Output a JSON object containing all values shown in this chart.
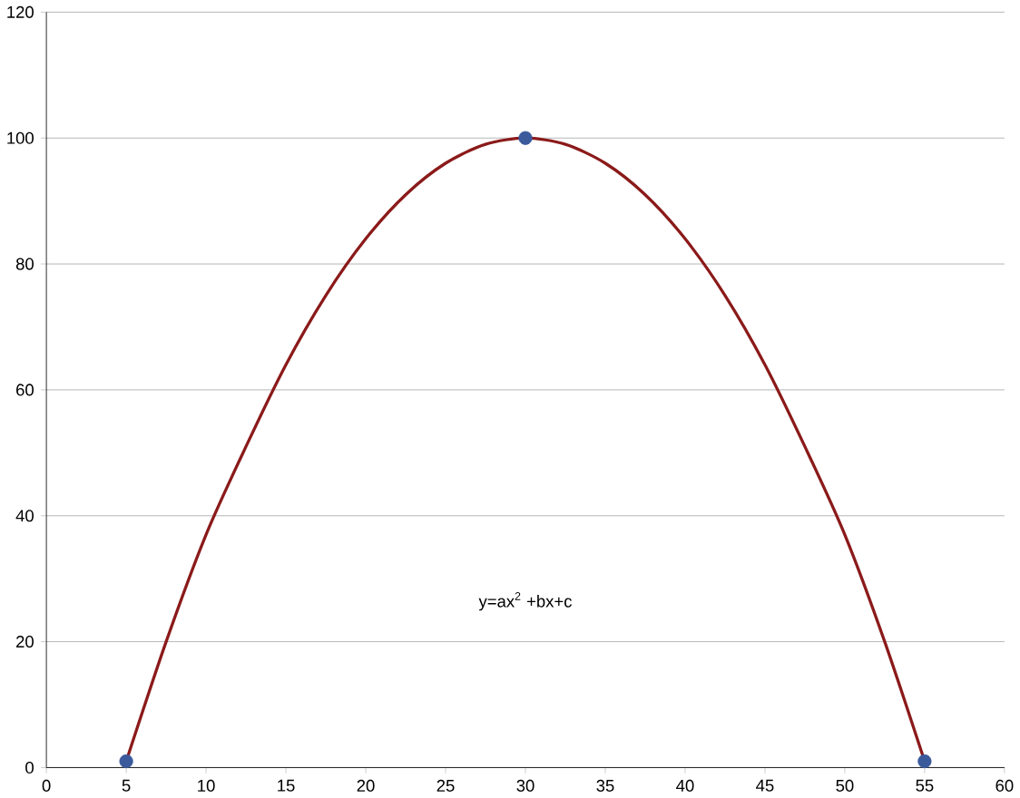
{
  "chart_data": {
    "type": "line",
    "x": [
      5,
      7.5,
      10,
      12.5,
      15,
      17.5,
      20,
      22.5,
      25,
      27.5,
      30,
      32.5,
      35,
      37.5,
      40,
      42.5,
      45,
      47.5,
      50,
      52.5,
      55
    ],
    "series": [
      {
        "color": "#8b1a1a",
        "values": [
          1,
          20,
          37,
          51,
          64,
          75,
          84,
          91,
          96,
          99,
          100,
          99,
          96,
          91,
          84,
          75,
          64,
          51,
          37,
          20,
          1
        ]
      },
      {
        "type": "scatter",
        "x": [
          5,
          30,
          55
        ],
        "color": "#3a5a9c",
        "marker": "circle",
        "values": [
          1,
          100,
          1
        ]
      }
    ],
    "xlim": [
      0,
      60
    ],
    "xticks": [
      0,
      5,
      10,
      15,
      20,
      25,
      30,
      35,
      40,
      45,
      50,
      55,
      60
    ],
    "ylim": [
      0,
      120
    ],
    "yticks": [
      0,
      20,
      40,
      60,
      80,
      100,
      120
    ],
    "grid": "y",
    "annotations": [
      "y=ax$^{2}$ +bx+c"
    ]
  }
}
